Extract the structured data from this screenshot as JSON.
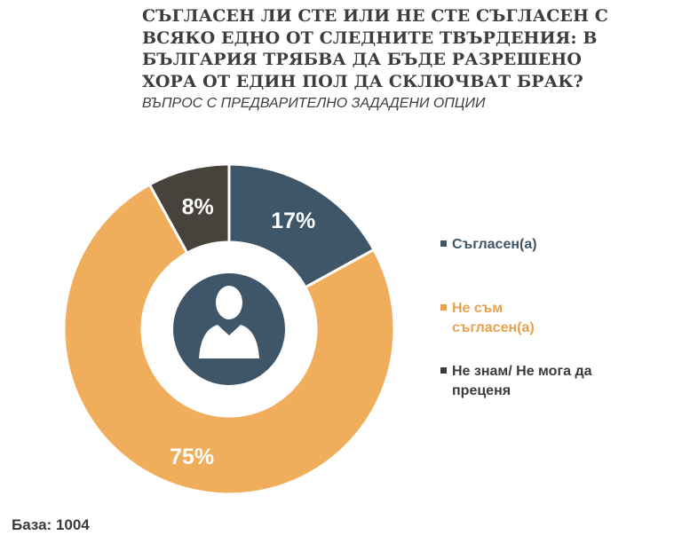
{
  "title": "СЪГЛАСЕН ЛИ СТЕ ИЛИ НЕ СТЕ СЪГЛАСЕН С ВСЯКО ЕДНО ОТ СЛЕДНИТЕ ТВЪРДЕНИЯ: В БЪЛГАРИЯ ТРЯБВА ДА БЪДЕ РАЗРЕШЕНО ХОРА ОТ ЕДИН ПОЛ ДА СКЛЮЧВАТ БРАК?",
  "subtitle": "ВЪПРОС С ПРЕДВАРИТЕЛНО ЗАДАДЕНИ ОПЦИИ",
  "base_label": "База: 1004",
  "center_icon": "person-silhouette-icon",
  "chart_data": {
    "type": "pie",
    "variant": "donut",
    "legend_position": "right",
    "slices": [
      {
        "label": "Съгласен(а)",
        "value": 17,
        "value_label": "17%",
        "color": "#3f5568",
        "legend_color": "#3f5568"
      },
      {
        "label": "Не съм съгласен(а)",
        "value": 75,
        "value_label": "75%",
        "color": "#f0ad5c",
        "legend_color": "#e8a24e"
      },
      {
        "label": "Не знам/ Не мога да преценя",
        "value": 8,
        "value_label": "8%",
        "color": "#47423c",
        "legend_color": "#3a3a3a"
      }
    ]
  }
}
